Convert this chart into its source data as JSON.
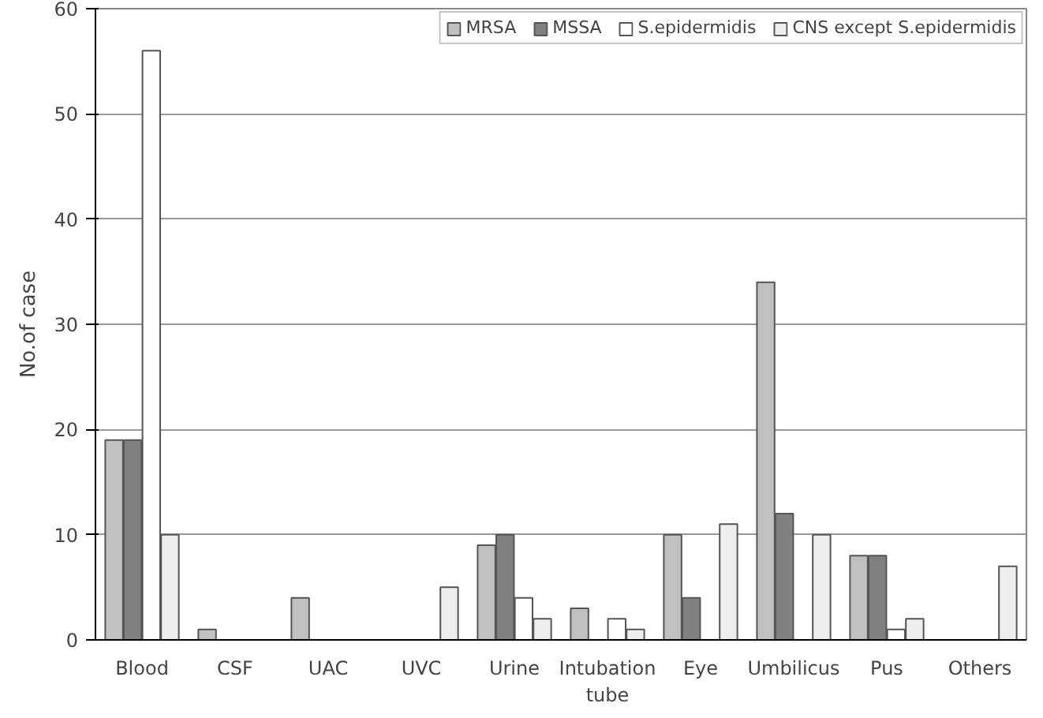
{
  "chart_data": {
    "type": "bar",
    "ylabel": "No.of case",
    "categories": [
      "Blood",
      "CSF",
      "UAC",
      "UVC",
      "Urine",
      "Intubation\ntube",
      "Eye",
      "Umbilicus",
      "Pus",
      "Others"
    ],
    "series": [
      {
        "name": "MRSA",
        "color": "#c0c0c0",
        "values": [
          19,
          1,
          4,
          0,
          9,
          3,
          10,
          34,
          8,
          0
        ]
      },
      {
        "name": "MSSA",
        "color": "#808080",
        "values": [
          19,
          0,
          0,
          0,
          10,
          0,
          4,
          12,
          8,
          0
        ]
      },
      {
        "name": "S.epidermidis",
        "color": "#ffffff",
        "values": [
          56,
          0,
          0,
          0,
          4,
          2,
          0,
          0,
          1,
          0
        ]
      },
      {
        "name": "CNS except S.epidermidis",
        "color": "#eeeeee",
        "values": [
          10,
          0,
          0,
          5,
          2,
          1,
          11,
          10,
          2,
          7
        ]
      }
    ],
    "ylim": [
      0,
      60
    ],
    "yticks": [
      0,
      10,
      20,
      30,
      40,
      50,
      60
    ],
    "grid": "y",
    "legend": "top"
  }
}
